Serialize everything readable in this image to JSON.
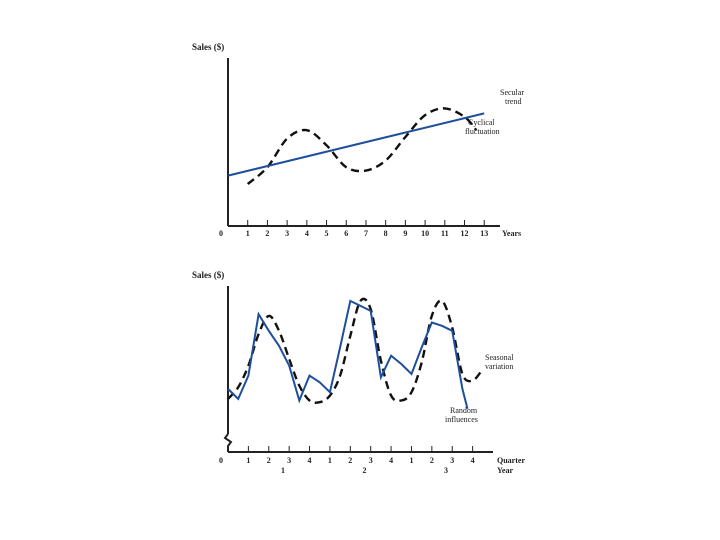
{
  "colors": {
    "trend": "#1f4e9c",
    "dashed": "#111111",
    "axis": "#222222"
  },
  "chart_data": [
    {
      "type": "line",
      "ylabel": "Sales ($)",
      "xlabel": "Years",
      "origin_label": "0",
      "x_ticks": [
        1,
        2,
        3,
        4,
        5,
        6,
        7,
        8,
        9,
        10,
        11,
        12,
        13
      ],
      "xlim": [
        0,
        13.8
      ],
      "ylim": [
        0,
        10
      ],
      "series": [
        {
          "name": "Secular trend",
          "label_lines": [
            "Secular",
            "trend"
          ],
          "style": "solid",
          "x": [
            0,
            13
          ],
          "y": [
            3.0,
            6.7
          ]
        },
        {
          "name": "Cyclical fluctuation",
          "label_lines": [
            "Cyclical",
            "fluctuation"
          ],
          "style": "dashed",
          "x": [
            1,
            2,
            3,
            4,
            5,
            6,
            7,
            8,
            9,
            10,
            11,
            12,
            12.6
          ],
          "y": [
            2.5,
            3.5,
            5.2,
            5.7,
            4.8,
            3.5,
            3.3,
            3.9,
            5.3,
            6.6,
            7.0,
            6.5,
            5.7
          ]
        }
      ]
    },
    {
      "type": "line",
      "ylabel": "Sales ($)",
      "xlabel": "Quarter",
      "xlabel2": "Year",
      "origin_label": "0",
      "x_ticks": [
        "1",
        "2",
        "3",
        "4",
        "1",
        "2",
        "3",
        "4",
        "1",
        "2",
        "3",
        "4"
      ],
      "year_labels": [
        {
          "label": "1",
          "x": 2.5
        },
        {
          "label": "2",
          "x": 6.5
        },
        {
          "label": "3",
          "x": 10.5
        }
      ],
      "xlim": [
        0,
        13
      ],
      "ylim": [
        0,
        10
      ],
      "series": [
        {
          "name": "Seasonal variation",
          "label_lines": [
            "Seasonal",
            "variation"
          ],
          "style": "dashed",
          "x": [
            0,
            0.5,
            1,
            1.5,
            2,
            2.5,
            3,
            3.5,
            4,
            4.5,
            5,
            5.5,
            6,
            6.5,
            7,
            7.5,
            8,
            8.5,
            9,
            9.5,
            10,
            10.5,
            11,
            11.5,
            12,
            12.5
          ],
          "y": [
            3.2,
            3.9,
            5.2,
            7.1,
            8.2,
            7.3,
            5.6,
            4.0,
            3.1,
            3.0,
            3.4,
            4.6,
            7.0,
            9.1,
            8.6,
            5.5,
            3.4,
            3.1,
            3.6,
            5.4,
            8.2,
            9.1,
            7.5,
            4.7,
            4.3,
            5.0
          ]
        },
        {
          "name": "Random influences",
          "label_lines": [
            "Random",
            "influences"
          ],
          "style": "solid",
          "x": [
            0,
            0.5,
            1,
            1.5,
            2,
            2.5,
            3,
            3.5,
            4,
            4.5,
            5,
            5.5,
            6,
            6.5,
            7,
            7.5,
            8,
            8.5,
            9,
            9.5,
            10,
            10.5,
            11,
            11.5,
            11.75
          ],
          "y": [
            3.8,
            3.2,
            4.6,
            8.3,
            7.3,
            6.4,
            5.2,
            3.1,
            4.6,
            4.2,
            3.6,
            6.3,
            9.1,
            8.8,
            8.5,
            4.5,
            5.8,
            5.3,
            4.7,
            6.3,
            7.8,
            7.6,
            7.3,
            3.8,
            2.6
          ]
        }
      ]
    }
  ]
}
